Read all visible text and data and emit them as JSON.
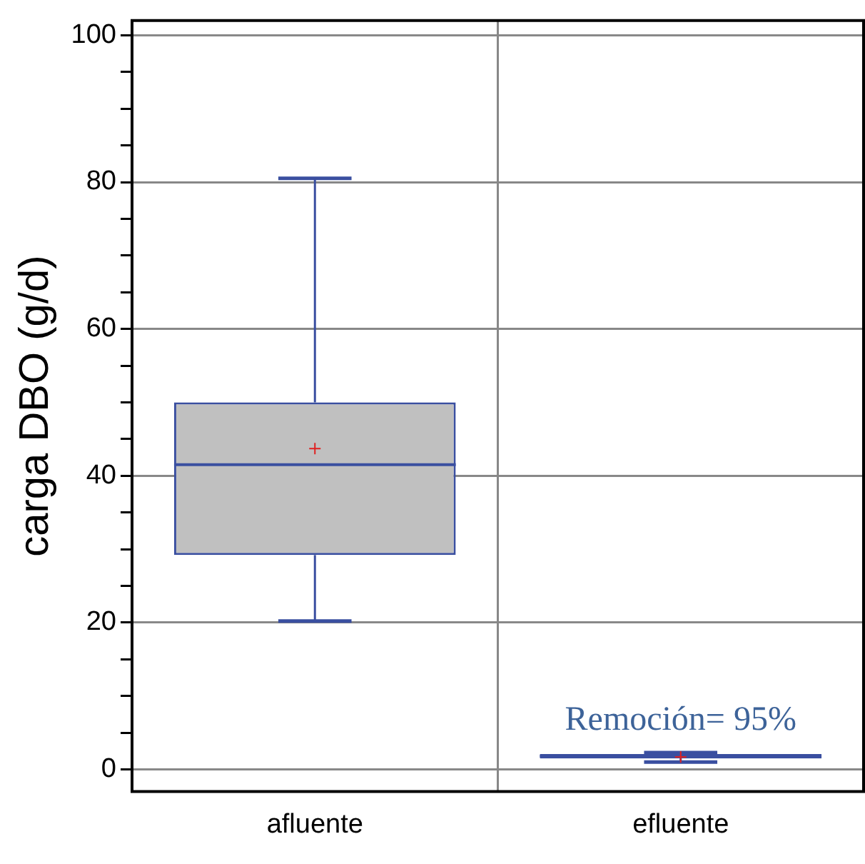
{
  "chart_data": {
    "type": "box",
    "categories": [
      "afluente",
      "efluente"
    ],
    "ylabel": "carga DBO (g/d)",
    "ylim": [
      -3,
      102
    ],
    "yticks": [
      0,
      {
        "value": 5,
        "label": null
      },
      {
        "value": 10,
        "label": null
      },
      {
        "value": 15,
        "label": null
      },
      20,
      {
        "value": 25,
        "label": null
      },
      {
        "value": 30,
        "label": null
      },
      {
        "value": 35,
        "label": null
      },
      40,
      {
        "value": 45,
        "label": null
      },
      {
        "value": 50,
        "label": null
      },
      {
        "value": 55,
        "label": null
      },
      60,
      {
        "value": 65,
        "label": null
      },
      {
        "value": 70,
        "label": null
      },
      {
        "value": 75,
        "label": null
      },
      80,
      {
        "value": 85,
        "label": null
      },
      {
        "value": 90,
        "label": null
      },
      {
        "value": 95,
        "label": null
      },
      100
    ],
    "grid": true,
    "legend": false,
    "series": [
      {
        "color": "#3a4fa0",
        "boxes": [
          {
            "low": 20.2,
            "q1": 29.2,
            "median": 41.5,
            "q3": 50.0,
            "high": 80.5,
            "mean": 43.7
          },
          {
            "low": 1.0,
            "q1": 1.5,
            "median": 1.8,
            "q3": 2.1,
            "high": 2.3,
            "mean": 1.7
          }
        ]
      }
    ],
    "annotations": [
      "Remoción= 95%"
    ]
  }
}
